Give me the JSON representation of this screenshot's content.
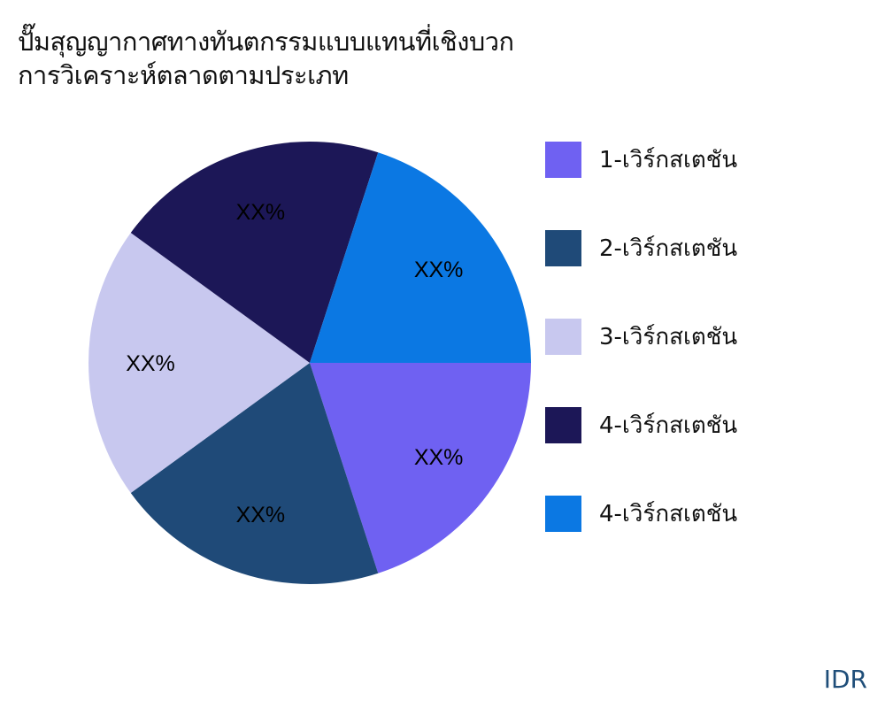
{
  "chart_data": {
    "type": "pie",
    "title": [
      "ปั๊มสุญญากาศทางทันตกรรมแบบแทนที่เชิงบวก",
      "การวิเคราะห์ตลาดตามประเภท"
    ],
    "slices": [
      {
        "name": "1-เวิร์กสเตชัน",
        "value": 20,
        "label": "XX%",
        "color": "#6f61f2"
      },
      {
        "name": "2-เวิร์กสเตชัน",
        "value": 20,
        "label": "XX%",
        "color": "#1f4a78"
      },
      {
        "name": "3-เวิร์กสเตชัน",
        "value": 20,
        "label": "XX%",
        "color": "#c8c8ef"
      },
      {
        "name": "4-เวิร์กสเตชัน",
        "value": 20,
        "label": "XX%",
        "color": "#1c1757"
      },
      {
        "name": "4-เวิร์กสเตชัน",
        "value": 20,
        "label": "XX%",
        "color": "#0b78e3"
      }
    ],
    "legend_position": "right"
  },
  "brand": "IDR"
}
